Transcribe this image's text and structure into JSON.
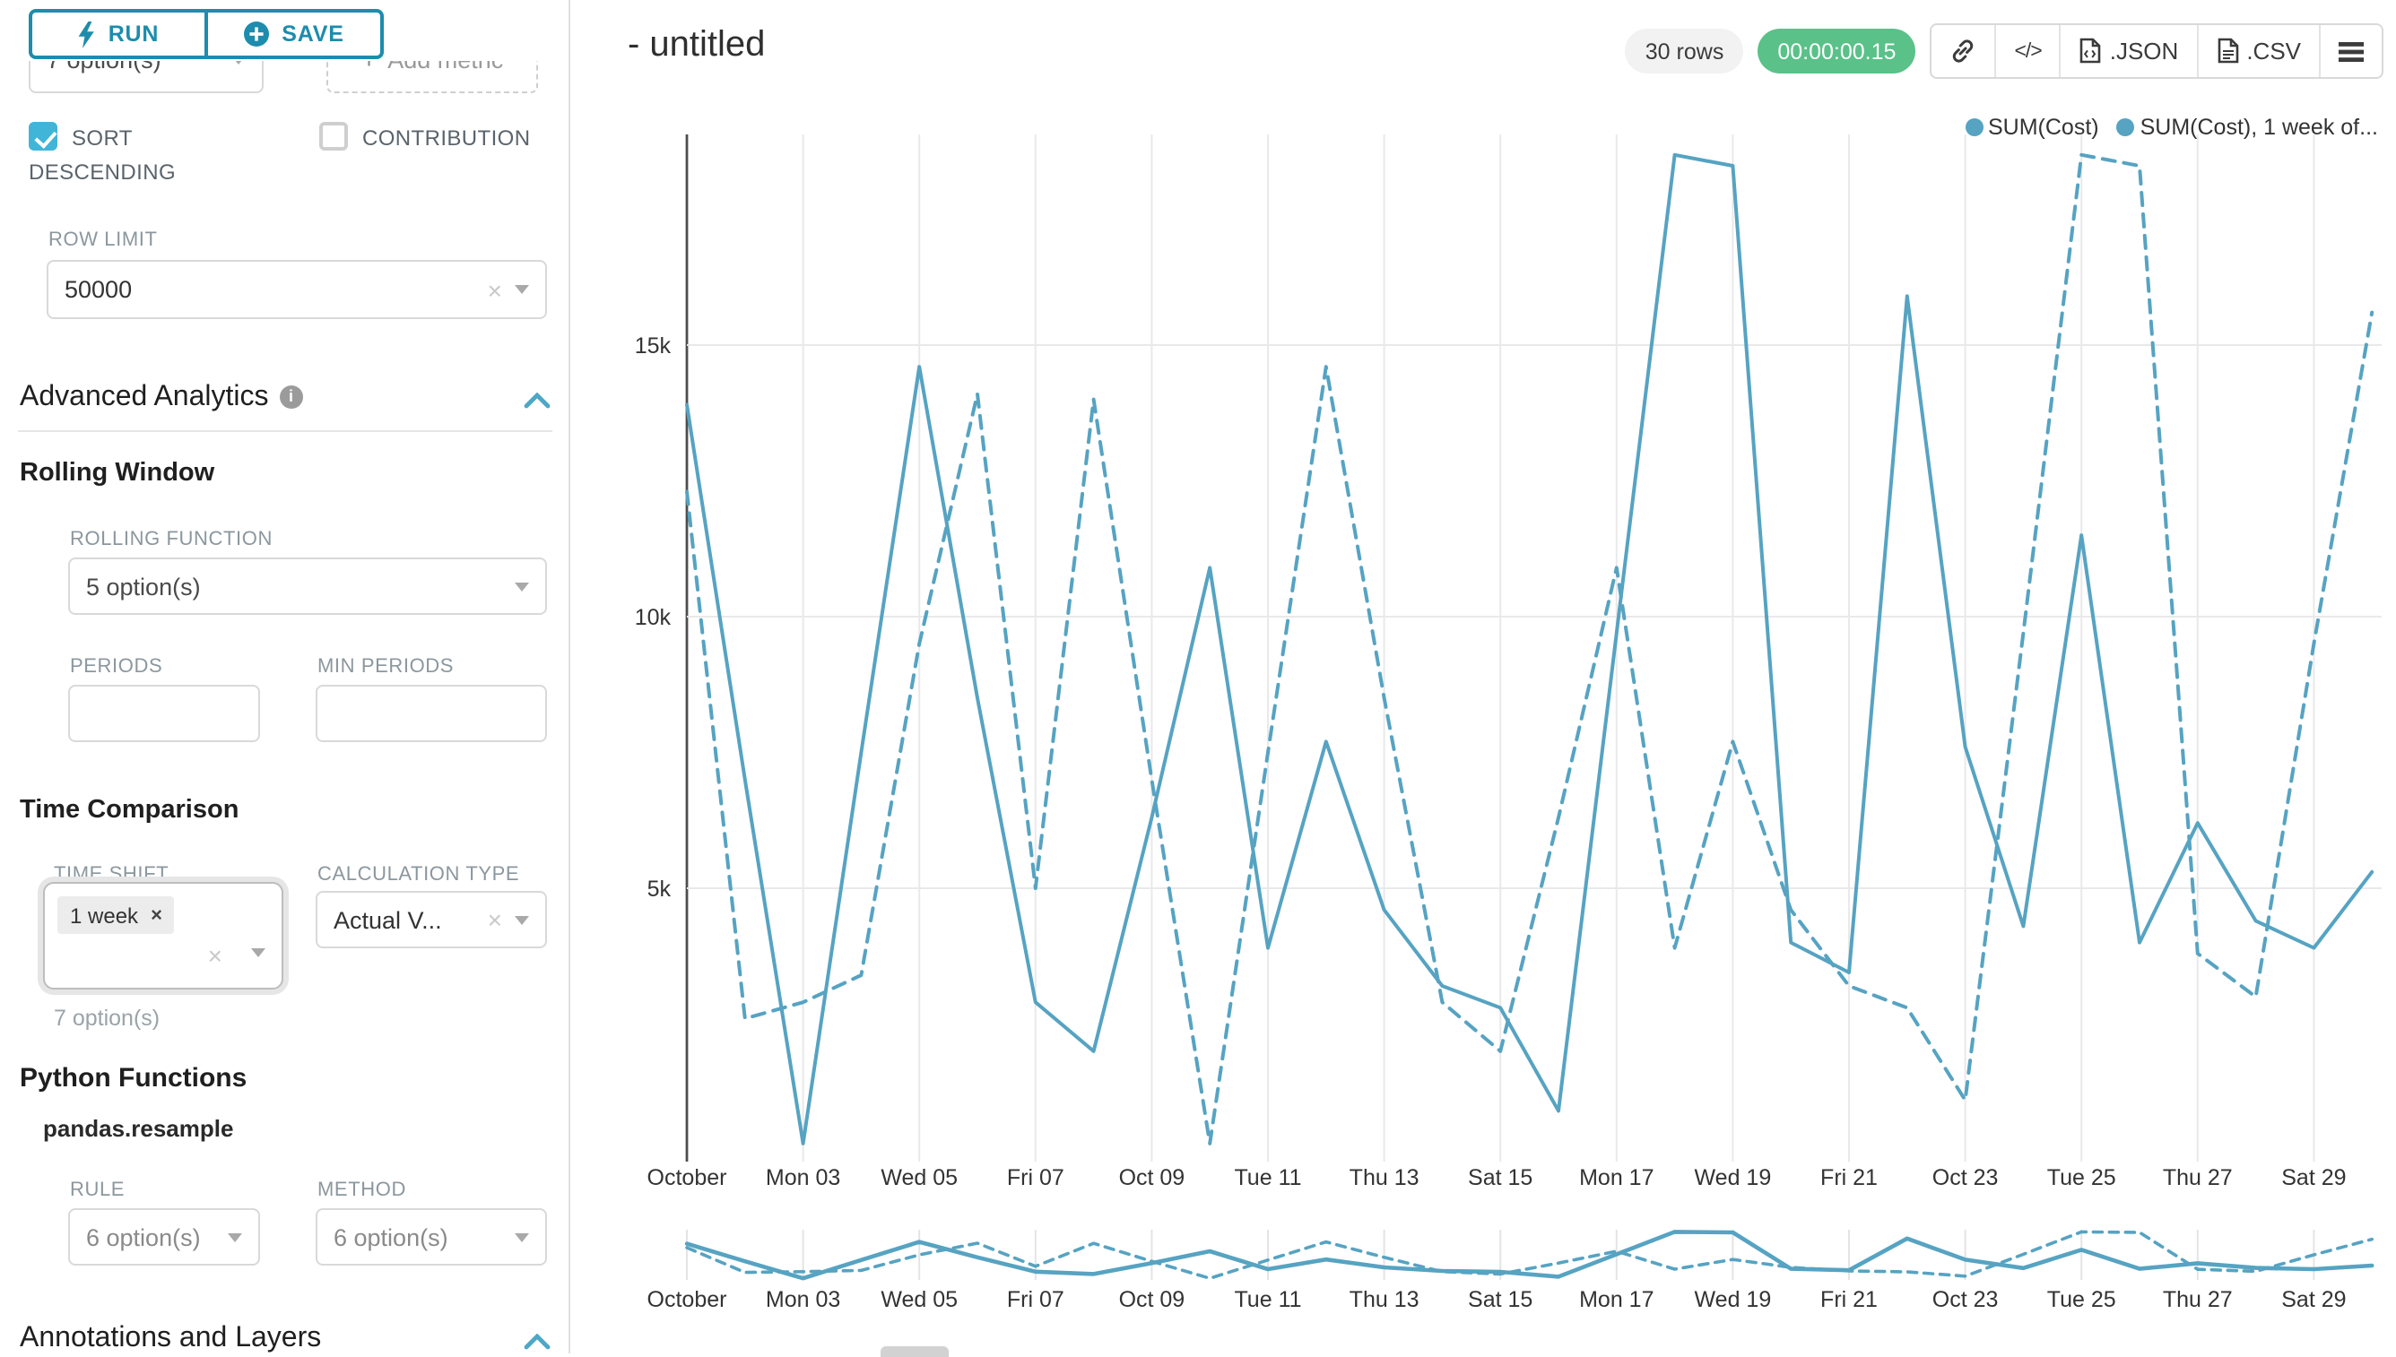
{
  "colors": {
    "accent": "#1d8cad",
    "accent_bright": "#41b5d8",
    "series": "#56a3c2",
    "success": "#5ac189",
    "grid": "#e9e9e9",
    "axis": "#4d4d4d"
  },
  "left_panel": {
    "run_label": "RUN",
    "save_label": "SAVE",
    "sort_metric_value": "7 option(s)",
    "add_metric_label": "Add metric",
    "sort_descending": {
      "label": "SORT DESCENDING",
      "checked": true
    },
    "contribution": {
      "label": "CONTRIBUTION",
      "checked": false
    },
    "row_limit": {
      "label": "ROW LIMIT",
      "value": "50000"
    },
    "advanced_analytics_title": "Advanced Analytics",
    "rolling_window": {
      "title": "Rolling Window",
      "rolling_function": {
        "label": "ROLLING FUNCTION",
        "value": "5 option(s)"
      },
      "periods_label": "PERIODS",
      "min_periods_label": "MIN PERIODS"
    },
    "time_comparison": {
      "title": "Time Comparison",
      "time_shift": {
        "label": "TIME SHIFT",
        "tag": "1 week",
        "hint": "7 option(s)"
      },
      "calculation_type": {
        "label": "CALCULATION TYPE",
        "value": "Actual V..."
      }
    },
    "python_functions": {
      "title": "Python Functions",
      "subtitle": "pandas.resample",
      "rule": {
        "label": "RULE",
        "value": "6 option(s)"
      },
      "method": {
        "label": "METHOD",
        "value": "6 option(s)"
      }
    },
    "annotations_title": "Annotations and Layers"
  },
  "header": {
    "title": "- untitled",
    "row_count": "30 rows",
    "timer": "00:00:00.15",
    "json_label": ".JSON",
    "csv_label": ".CSV"
  },
  "chart_data": {
    "type": "line",
    "title": "- untitled",
    "x_axis": "day of October (30 daily points, Oct 01 - Oct 30)",
    "x_tick_labels": [
      "October",
      "Mon 03",
      "Wed 05",
      "Fri 07",
      "Oct 09",
      "Tue 11",
      "Thu 13",
      "Sat 15",
      "Mon 17",
      "Wed 19",
      "Fri 21",
      "Oct 23",
      "Tue 25",
      "Thu 27",
      "Sat 29"
    ],
    "y_ticks": [
      {
        "value": 5000,
        "label": "5k"
      },
      {
        "value": 10000,
        "label": "10k"
      },
      {
        "value": 15000,
        "label": "15k"
      }
    ],
    "ylim": [
      0,
      19000
    ],
    "grid": true,
    "legend_position": "top-right",
    "has_mini_context_chart": true,
    "series": [
      {
        "name": "SUM(Cost)",
        "style": "solid",
        "values": [
          13900,
          7000,
          300,
          7500,
          14600,
          8500,
          2900,
          2000,
          6300,
          10900,
          3900,
          7700,
          4600,
          3200,
          2800,
          900,
          9700,
          18500,
          18300,
          4000,
          3450,
          15900,
          7600,
          4300,
          11500,
          4000,
          6200,
          4400,
          3900,
          5300
        ]
      },
      {
        "name": "SUM(Cost), 1 week of...",
        "style": "dashed",
        "values": [
          12300,
          2600,
          2900,
          3400,
          9500,
          14100,
          5000,
          14000,
          7000,
          300,
          7500,
          14600,
          8500,
          2900,
          2000,
          6300,
          10900,
          3900,
          7700,
          4600,
          3200,
          2800,
          1100,
          9700,
          18500,
          18300,
          3800,
          3000,
          9500,
          15600
        ]
      }
    ]
  }
}
